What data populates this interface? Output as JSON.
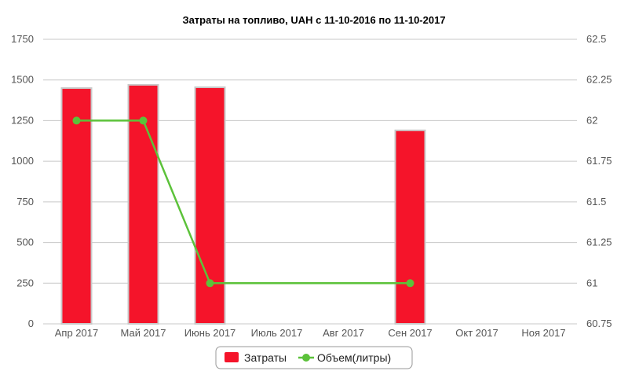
{
  "colors": {
    "bar": "#f5142a",
    "bar_edge": "#c9c9c9",
    "line": "#5cc23a",
    "grid": "#c8c8c8",
    "axis_text": "#555555"
  },
  "chart_data": {
    "type": "bar",
    "title": "Затраты на топливо, UAH с 11-10-2016 по 11-10-2017",
    "categories": [
      "Апр 2017",
      "Май 2017",
      "Июнь 2017",
      "Июль 2017",
      "Авг 2017",
      "Сен 2017",
      "Окт 2017",
      "Ноя 2017"
    ],
    "y_left": {
      "min": 0,
      "max": 1750,
      "ticks": [
        "0",
        "250",
        "500",
        "750",
        "1000",
        "1250",
        "1500",
        "1750"
      ]
    },
    "y_right": {
      "min": 60.75,
      "max": 62.5,
      "ticks": [
        "60.75",
        "61",
        "61.25",
        "61.5",
        "61.75",
        "62",
        "62.25",
        "62.5"
      ]
    },
    "grid": true,
    "legend_position": "bottom-center",
    "series": [
      {
        "name": "Затраты",
        "type": "bar",
        "axis": "left",
        "values": [
          1450,
          1470,
          1455,
          null,
          null,
          1190,
          null,
          null
        ]
      },
      {
        "name": "Объем(литры)",
        "type": "line",
        "axis": "right",
        "values": [
          62,
          62,
          61,
          null,
          null,
          61,
          null,
          null
        ]
      }
    ]
  }
}
